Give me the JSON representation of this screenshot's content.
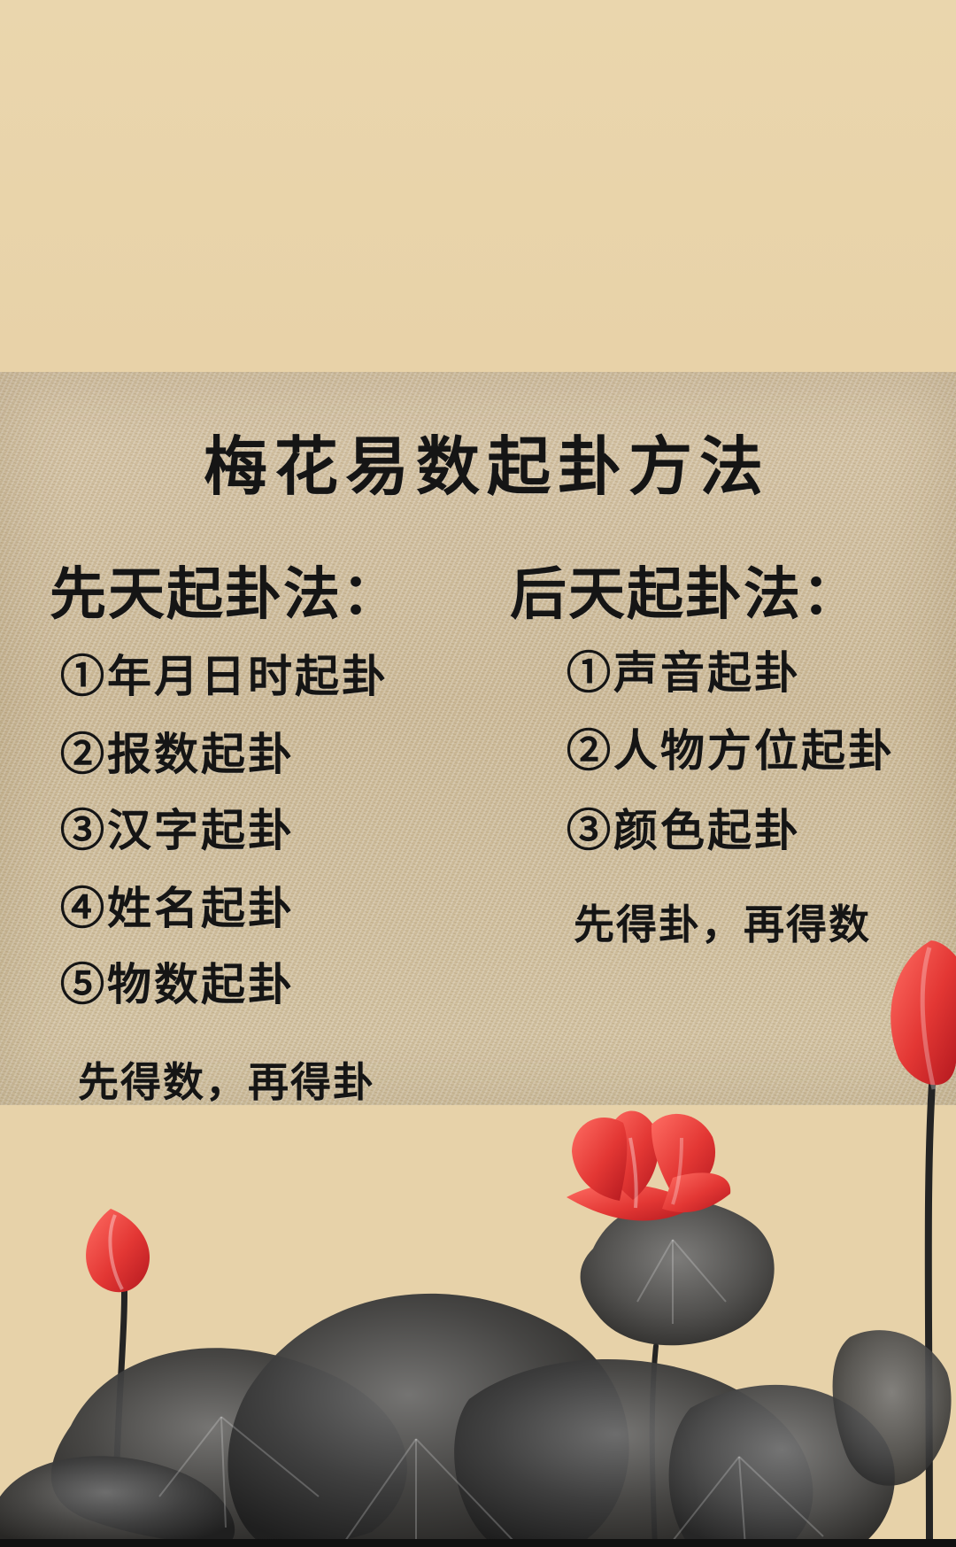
{
  "page": {
    "title": "梅花易数起卦方法",
    "left_section": {
      "heading": "先天起卦法：",
      "items": [
        "①年月日时起卦",
        "②报数起卦",
        "③汉字起卦",
        "④姓名起卦",
        "⑤物数起卦"
      ],
      "note": "先得数，再得卦"
    },
    "right_section": {
      "heading": "后天起卦法：",
      "items": [
        "①声音起卦",
        "②人物方位起卦",
        "③颜色起卦"
      ],
      "note": "先得卦，再得数"
    }
  },
  "decorations": {
    "background_color": "#e8d2a8",
    "cloth_color": "#cdb997",
    "text_color": "#151515",
    "lotus_red": "#e33734",
    "leaf_dark": "#3f3f3f"
  }
}
